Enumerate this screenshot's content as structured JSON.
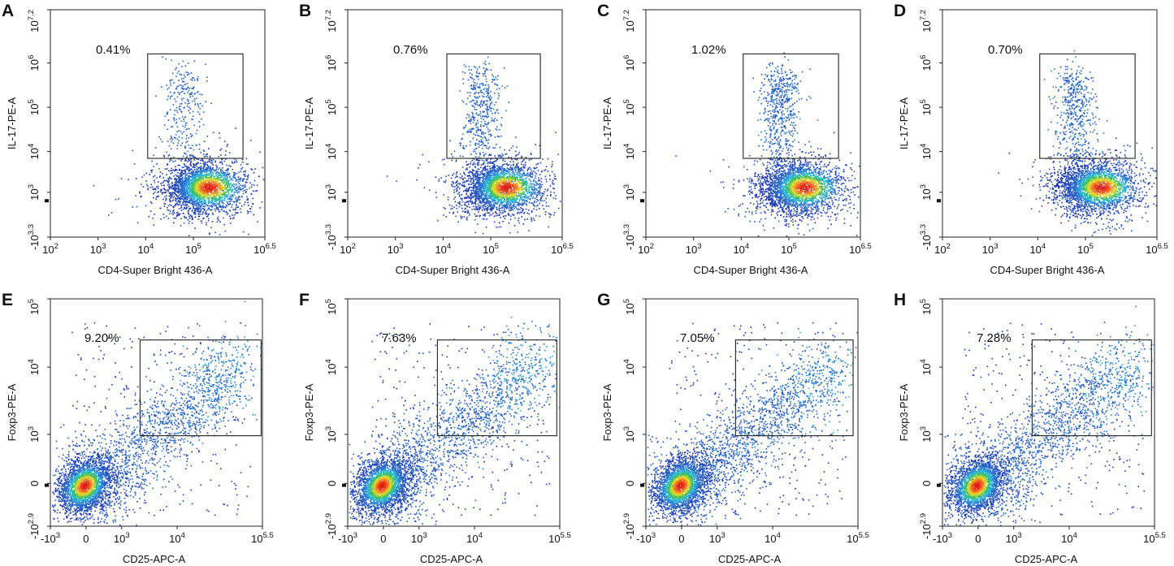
{
  "chart_data": [
    {
      "type": "flow-density",
      "panel": "A",
      "gate_label": "0.41%",
      "xlabel": "CD4-Super Bright 436-A",
      "ylabel": "IL-17-PE-A",
      "xscale": "log",
      "yscale": "biex",
      "xlim": [
        100,
        3162278
      ],
      "ylim": [
        -1995,
        15848932
      ],
      "xticks": [
        {
          "value": 100,
          "label": "10",
          "exp": "2"
        },
        {
          "value": 1000,
          "label": "10",
          "exp": "3"
        },
        {
          "value": 10000,
          "label": "10",
          "exp": "4"
        },
        {
          "value": 100000,
          "label": "10",
          "exp": "5"
        },
        {
          "value": 3162278,
          "label": "10",
          "exp": "6.5"
        }
      ],
      "yticks": [
        {
          "value": -1995,
          "label": "-10",
          "exp": "3.3"
        },
        {
          "value": 1000,
          "label": "10",
          "exp": "3"
        },
        {
          "value": 10000,
          "label": "10",
          "exp": "4"
        },
        {
          "value": 100000,
          "label": "10",
          "exp": "5"
        },
        {
          "value": 1000000,
          "label": "10",
          "exp": "6"
        },
        {
          "value": 15848932,
          "label": "10",
          "exp": "7.2"
        }
      ],
      "gate": {
        "x": [
          11000,
          1100000
        ],
        "y": [
          7000,
          1600000
        ]
      }
    },
    {
      "type": "flow-density",
      "panel": "B",
      "gate_label": "0.76%",
      "xlabel": "CD4-Super Bright 436-A",
      "ylabel": "IL-17-PE-A",
      "xscale": "log",
      "yscale": "biex",
      "xlim": [
        100,
        3162278
      ],
      "ylim": [
        -1995,
        15848932
      ],
      "xticks": [
        {
          "value": 100,
          "label": "10",
          "exp": "2"
        },
        {
          "value": 1000,
          "label": "10",
          "exp": "3"
        },
        {
          "value": 10000,
          "label": "10",
          "exp": "4"
        },
        {
          "value": 100000,
          "label": "10",
          "exp": "5"
        },
        {
          "value": 3162278,
          "label": "10",
          "exp": "6.5"
        }
      ],
      "yticks": [
        {
          "value": -1995,
          "label": "-10",
          "exp": "3.3"
        },
        {
          "value": 1000,
          "label": "10",
          "exp": "3"
        },
        {
          "value": 10000,
          "label": "10",
          "exp": "4"
        },
        {
          "value": 100000,
          "label": "10",
          "exp": "5"
        },
        {
          "value": 1000000,
          "label": "10",
          "exp": "6"
        },
        {
          "value": 15848932,
          "label": "10",
          "exp": "7.2"
        }
      ],
      "gate": {
        "x": [
          12000,
          1100000
        ],
        "y": [
          7000,
          1600000
        ]
      }
    },
    {
      "type": "flow-density",
      "panel": "C",
      "gate_label": "1.02%",
      "xlabel": "CD4-Super Bright 436-A",
      "ylabel": "IL-17-PE-A",
      "xscale": "log",
      "yscale": "biex",
      "xlim": [
        100,
        3162278
      ],
      "ylim": [
        -1995,
        15848932
      ],
      "xticks": [
        {
          "value": 100,
          "label": "10",
          "exp": "2"
        },
        {
          "value": 1000,
          "label": "10",
          "exp": "3"
        },
        {
          "value": 10000,
          "label": "10",
          "exp": "4"
        },
        {
          "value": 100000,
          "label": "10",
          "exp": "5"
        },
        {
          "value": 3162278,
          "label": "10",
          "exp": "6.5"
        }
      ],
      "yticks": [
        {
          "value": -1995,
          "label": "-10",
          "exp": "3.3"
        },
        {
          "value": 1000,
          "label": "10",
          "exp": "3"
        },
        {
          "value": 10000,
          "label": "10",
          "exp": "4"
        },
        {
          "value": 100000,
          "label": "10",
          "exp": "5"
        },
        {
          "value": 1000000,
          "label": "10",
          "exp": "6"
        },
        {
          "value": 15848932,
          "label": "10",
          "exp": "7.2"
        }
      ],
      "gate": {
        "x": [
          11000,
          1100000
        ],
        "y": [
          7000,
          1600000
        ]
      }
    },
    {
      "type": "flow-density",
      "panel": "D",
      "gate_label": "0.70%",
      "xlabel": "CD4-Super Bright 436-A",
      "ylabel": "IL-17-PE-A",
      "xscale": "log",
      "yscale": "biex",
      "xlim": [
        100,
        3162278
      ],
      "ylim": [
        -1995,
        15848932
      ],
      "xticks": [
        {
          "value": 100,
          "label": "10",
          "exp": "2"
        },
        {
          "value": 1000,
          "label": "10",
          "exp": "3"
        },
        {
          "value": 10000,
          "label": "10",
          "exp": "4"
        },
        {
          "value": 100000,
          "label": "10",
          "exp": "5"
        },
        {
          "value": 3162278,
          "label": "10",
          "exp": "6.5"
        }
      ],
      "yticks": [
        {
          "value": -1995,
          "label": "-10",
          "exp": "3.3"
        },
        {
          "value": 1000,
          "label": "10",
          "exp": "3"
        },
        {
          "value": 10000,
          "label": "10",
          "exp": "4"
        },
        {
          "value": 100000,
          "label": "10",
          "exp": "5"
        },
        {
          "value": 1000000,
          "label": "10",
          "exp": "6"
        },
        {
          "value": 15848932,
          "label": "10",
          "exp": "7.2"
        }
      ],
      "gate": {
        "x": [
          11000,
          1100000
        ],
        "y": [
          7000,
          1600000
        ]
      }
    },
    {
      "type": "flow-density",
      "panel": "E",
      "gate_label": "9.20%",
      "xlabel": "CD25-APC-A",
      "ylabel": "Foxp3-PE-A",
      "xscale": "biex",
      "yscale": "biex",
      "xlim": [
        -1000,
        316228
      ],
      "ylim": [
        -794,
        100000
      ],
      "xticks": [
        {
          "value": -1000,
          "label": "-10",
          "exp": "3"
        },
        0,
        {
          "value": 1000,
          "label": "10",
          "exp": "3"
        },
        {
          "value": 10000,
          "label": "10",
          "exp": "4"
        },
        {
          "value": 316228,
          "label": "10",
          "exp": "5.5"
        }
      ],
      "yticks": [
        {
          "value": -794,
          "label": "-10",
          "exp": "2.9"
        },
        0,
        {
          "value": 1000,
          "label": "10",
          "exp": "3"
        },
        {
          "value": 10000,
          "label": "10",
          "exp": "4"
        },
        {
          "value": 100000,
          "label": "10",
          "exp": "5"
        }
      ],
      "gate": {
        "x": [
          2200,
          300000
        ],
        "y": [
          950,
          25000
        ]
      }
    },
    {
      "type": "flow-density",
      "panel": "F",
      "gate_label": "7.63%",
      "xlabel": "CD25-APC-A",
      "ylabel": "Foxp3-PE-A",
      "xscale": "biex",
      "yscale": "biex",
      "xlim": [
        -1000,
        316228
      ],
      "ylim": [
        -794,
        100000
      ],
      "xticks": [
        {
          "value": -1000,
          "label": "-10",
          "exp": "3"
        },
        0,
        {
          "value": 1000,
          "label": "10",
          "exp": "3"
        },
        {
          "value": 10000,
          "label": "10",
          "exp": "4"
        },
        {
          "value": 316228,
          "label": "10",
          "exp": "5.5"
        }
      ],
      "yticks": [
        {
          "value": -794,
          "label": "-10",
          "exp": "2.9"
        },
        0,
        {
          "value": 1000,
          "label": "10",
          "exp": "3"
        },
        {
          "value": 10000,
          "label": "10",
          "exp": "4"
        },
        {
          "value": 100000,
          "label": "10",
          "exp": "5"
        }
      ],
      "gate": {
        "x": [
          2200,
          280000
        ],
        "y": [
          950,
          25000
        ]
      }
    },
    {
      "type": "flow-density",
      "panel": "G",
      "gate_label": "7.05%",
      "xlabel": "CD25-APC-A",
      "ylabel": "Foxp3-PE-A",
      "xscale": "biex",
      "yscale": "biex",
      "xlim": [
        -1000,
        316228
      ],
      "ylim": [
        -794,
        100000
      ],
      "xticks": [
        {
          "value": -1000,
          "label": "-10",
          "exp": "3"
        },
        0,
        {
          "value": 1000,
          "label": "10",
          "exp": "3"
        },
        {
          "value": 10000,
          "label": "10",
          "exp": "4"
        },
        {
          "value": 316228,
          "label": "10",
          "exp": "5.5"
        }
      ],
      "yticks": [
        {
          "value": -794,
          "label": "-10",
          "exp": "2.9"
        },
        0,
        {
          "value": 1000,
          "label": "10",
          "exp": "3"
        },
        {
          "value": 10000,
          "label": "10",
          "exp": "4"
        },
        {
          "value": 100000,
          "label": "10",
          "exp": "5"
        }
      ],
      "gate": {
        "x": [
          2200,
          260000
        ],
        "y": [
          950,
          25000
        ]
      }
    },
    {
      "type": "flow-density",
      "panel": "H",
      "gate_label": "7.28%",
      "xlabel": "CD25-APC-A",
      "ylabel": "Foxp3-PE-A",
      "xscale": "biex",
      "yscale": "biex",
      "xlim": [
        -1000,
        316228
      ],
      "ylim": [
        -794,
        100000
      ],
      "xticks": [
        {
          "value": -1000,
          "label": "-10",
          "exp": "3"
        },
        0,
        {
          "value": 1000,
          "label": "10",
          "exp": "3"
        },
        {
          "value": 10000,
          "label": "10",
          "exp": "4"
        },
        {
          "value": 316228,
          "label": "10",
          "exp": "5.5"
        }
      ],
      "yticks": [
        {
          "value": -794,
          "label": "-10",
          "exp": "2.9"
        },
        0,
        {
          "value": 1000,
          "label": "10",
          "exp": "3"
        },
        {
          "value": 10000,
          "label": "10",
          "exp": "4"
        },
        {
          "value": 100000,
          "label": "10",
          "exp": "5"
        }
      ],
      "gate": {
        "x": [
          2200,
          280000
        ],
        "y": [
          950,
          25000
        ]
      }
    }
  ]
}
